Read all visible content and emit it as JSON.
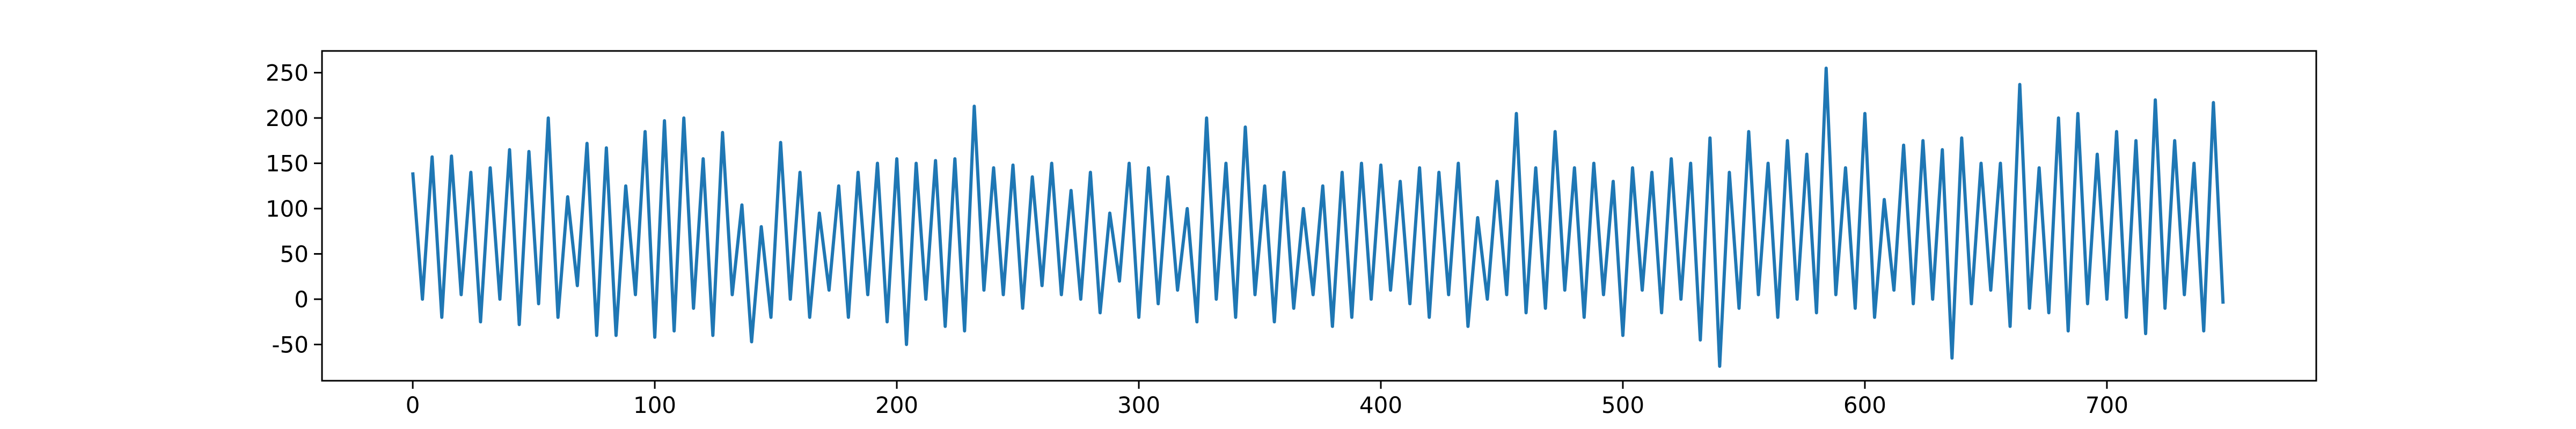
{
  "chart_data": {
    "type": "line",
    "color": "#1f77b4",
    "xlim": [
      -37.5,
      786.5
    ],
    "ylim": [
      -90,
      274
    ],
    "xticks": [
      0,
      100,
      200,
      300,
      400,
      500,
      600,
      700
    ],
    "yticks": [
      -50,
      0,
      50,
      100,
      150,
      200,
      250
    ],
    "x": [
      0,
      4,
      8,
      12,
      16,
      20,
      24,
      28,
      32,
      36,
      40,
      44,
      48,
      52,
      56,
      60,
      64,
      68,
      72,
      76,
      80,
      84,
      88,
      92,
      96,
      100,
      104,
      108,
      112,
      116,
      120,
      124,
      128,
      132,
      136,
      140,
      144,
      148,
      152,
      156,
      160,
      164,
      168,
      172,
      176,
      180,
      184,
      188,
      192,
      196,
      200,
      204,
      208,
      212,
      216,
      220,
      224,
      228,
      232,
      236,
      240,
      244,
      248,
      252,
      256,
      260,
      264,
      268,
      272,
      276,
      280,
      284,
      288,
      292,
      296,
      300,
      304,
      308,
      312,
      316,
      320,
      324,
      328,
      332,
      336,
      340,
      344,
      348,
      352,
      356,
      360,
      364,
      368,
      372,
      376,
      380,
      384,
      388,
      392,
      396,
      400,
      404,
      408,
      412,
      416,
      420,
      424,
      428,
      432,
      436,
      440,
      444,
      448,
      452,
      456,
      460,
      464,
      468,
      472,
      476,
      480,
      484,
      488,
      492,
      496,
      500,
      504,
      508,
      512,
      516,
      520,
      524,
      528,
      532,
      536,
      540,
      544,
      548,
      552,
      556,
      560,
      564,
      568,
      572,
      576,
      580,
      584,
      588,
      592,
      596,
      600,
      604,
      608,
      612,
      616,
      620,
      624,
      628,
      632,
      636,
      640,
      644,
      648,
      652,
      656,
      660,
      664,
      668,
      672,
      676,
      680,
      684,
      688,
      692,
      696,
      700,
      704,
      708,
      712,
      716,
      720,
      724,
      728,
      732,
      736,
      740,
      744,
      748
    ],
    "values": [
      140,
      0,
      157,
      -20,
      158,
      5,
      140,
      -25,
      145,
      0,
      165,
      -28,
      163,
      -5,
      200,
      -20,
      113,
      15,
      172,
      -40,
      167,
      -40,
      125,
      5,
      185,
      -42,
      197,
      -35,
      200,
      -10,
      155,
      -40,
      184,
      5,
      104,
      -47,
      80,
      -20,
      173,
      0,
      140,
      -20,
      95,
      10,
      125,
      -20,
      140,
      5,
      150,
      -25,
      155,
      -50,
      150,
      0,
      153,
      -30,
      155,
      -35,
      213,
      10,
      145,
      5,
      148,
      -10,
      135,
      15,
      150,
      5,
      120,
      0,
      140,
      -15,
      95,
      20,
      150,
      -20,
      145,
      -5,
      135,
      10,
      100,
      -25,
      200,
      0,
      150,
      -20,
      190,
      5,
      125,
      -25,
      140,
      -10,
      100,
      5,
      125,
      -30,
      140,
      -20,
      150,
      0,
      148,
      10,
      130,
      -5,
      145,
      -20,
      140,
      5,
      150,
      -30,
      90,
      0,
      130,
      5,
      205,
      -15,
      145,
      -10,
      185,
      10,
      145,
      -20,
      150,
      5,
      130,
      -40,
      145,
      10,
      140,
      -15,
      155,
      0,
      150,
      -45,
      178,
      -74,
      140,
      -10,
      185,
      5,
      150,
      -20,
      175,
      0,
      160,
      -15,
      255,
      5,
      145,
      -10,
      205,
      -20,
      110,
      10,
      170,
      -5,
      175,
      0,
      165,
      -65,
      178,
      -5,
      150,
      10,
      150,
      -30,
      237,
      -10,
      145,
      -15,
      200,
      -35,
      205,
      -5,
      160,
      0,
      185,
      -20,
      175,
      -38,
      220,
      -10,
      175,
      5,
      150,
      -35,
      217,
      -5
    ]
  }
}
